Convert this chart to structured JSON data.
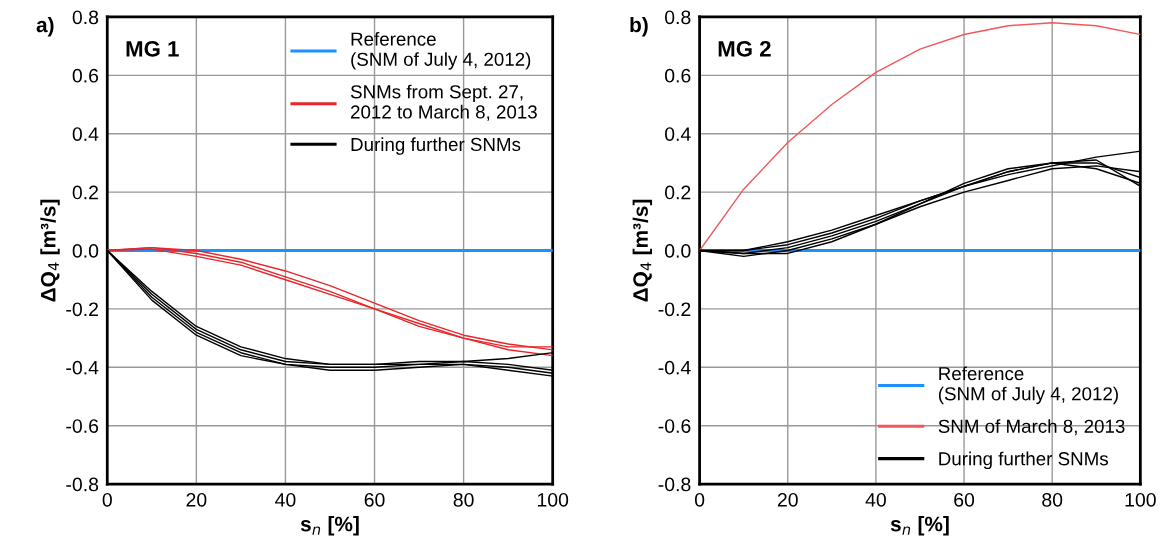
{
  "chart_data": [
    {
      "type": "line",
      "title": "a)",
      "annotations": [
        "MG 1"
      ],
      "xlabel": "s$_{n}$ [%]",
      "ylabel": "ΔQ$_{4}$ [m³/s]",
      "x": [
        0,
        10,
        20,
        30,
        40,
        50,
        60,
        70,
        80,
        90,
        100
      ],
      "xlim": [
        0,
        100
      ],
      "xticks": [
        0,
        20,
        40,
        60,
        80,
        100
      ],
      "ylim": [
        -0.8,
        0.8
      ],
      "yticks": [
        {
          "value": -0.8,
          "label": "-0.8"
        },
        {
          "value": -0.6,
          "label": "-0.6"
        },
        {
          "value": -0.4,
          "label": "-0.4"
        },
        {
          "value": -0.2,
          "label": "-0.2"
        },
        {
          "value": 0,
          "label": "0.0"
        },
        {
          "value": 0.2,
          "label": "0.2"
        },
        {
          "value": 0.4,
          "label": "0.4"
        },
        {
          "value": 0.6,
          "label": "0.6"
        },
        {
          "value": 0.8,
          "label": "0.8"
        }
      ],
      "grid": true,
      "legend": "top right",
      "series": [
        {
          "name": "Reference\n(SNM of July 4, 2012)",
          "color": "#1e90ff",
          "values": [
            0,
            0,
            0,
            0,
            0,
            0,
            0,
            0,
            0,
            0,
            0
          ]
        },
        {
          "name": "SNMs from Sept. 27,\n2012 to March 8, 2013",
          "color": "#e8262a",
          "values": [
            0,
            0.01,
            0,
            -0.03,
            -0.07,
            -0.12,
            -0.18,
            -0.24,
            -0.29,
            -0.32,
            -0.34
          ]
        },
        {
          "color": "#e8262a",
          "values": [
            0,
            0.01,
            -0.01,
            -0.04,
            -0.09,
            -0.14,
            -0.2,
            -0.25,
            -0.3,
            -0.33,
            -0.33
          ]
        },
        {
          "color": "#e8262a",
          "values": [
            0,
            0.005,
            -0.02,
            -0.05,
            -0.1,
            -0.15,
            -0.2,
            -0.26,
            -0.3,
            -0.34,
            -0.36
          ]
        },
        {
          "name": "During further SNMs",
          "color": "#000000",
          "values": [
            0,
            -0.15,
            -0.27,
            -0.34,
            -0.38,
            -0.39,
            -0.39,
            -0.39,
            -0.38,
            -0.39,
            -0.41
          ]
        },
        {
          "color": "#000000",
          "values": [
            0,
            -0.16,
            -0.28,
            -0.35,
            -0.39,
            -0.4,
            -0.4,
            -0.39,
            -0.39,
            -0.4,
            -0.42
          ]
        },
        {
          "color": "#000000",
          "values": [
            0,
            -0.14,
            -0.26,
            -0.33,
            -0.37,
            -0.39,
            -0.39,
            -0.38,
            -0.38,
            -0.37,
            -0.35
          ]
        },
        {
          "color": "#000000",
          "values": [
            0,
            -0.17,
            -0.29,
            -0.36,
            -0.39,
            -0.41,
            -0.41,
            -0.4,
            -0.39,
            -0.41,
            -0.43
          ]
        }
      ]
    },
    {
      "type": "line",
      "title": "b)",
      "annotations": [
        "MG 2"
      ],
      "xlabel": "s$_{n}$ [%]",
      "ylabel": "ΔQ$_{4}$ [m³/s]",
      "x": [
        0,
        10,
        20,
        30,
        40,
        50,
        60,
        70,
        80,
        90,
        100
      ],
      "xlim": [
        0,
        100
      ],
      "xticks": [
        0,
        20,
        40,
        60,
        80,
        100
      ],
      "ylim": [
        -0.8,
        0.8
      ],
      "yticks": [
        {
          "value": -0.8,
          "label": "-0.8"
        },
        {
          "value": -0.6,
          "label": "-0.6"
        },
        {
          "value": -0.4,
          "label": "-0.4"
        },
        {
          "value": -0.2,
          "label": "-0.2"
        },
        {
          "value": 0,
          "label": "0.0"
        },
        {
          "value": 0.2,
          "label": "0.2"
        },
        {
          "value": 0.4,
          "label": "0.4"
        },
        {
          "value": 0.6,
          "label": "0.6"
        },
        {
          "value": 0.8,
          "label": "0.8"
        }
      ],
      "grid": true,
      "legend": "bottom right",
      "series": [
        {
          "name": "Reference\n(SNM of July 4, 2012)",
          "color": "#1e90ff",
          "values": [
            0,
            0,
            0,
            0,
            0,
            0,
            0,
            0,
            0,
            0,
            0
          ]
        },
        {
          "name": "SNM of March 8, 2013",
          "color": "#f0585a",
          "values": [
            0,
            0.21,
            0.37,
            0.5,
            0.61,
            0.69,
            0.74,
            0.77,
            0.78,
            0.77,
            0.74
          ]
        },
        {
          "name": "During further SNMs",
          "color": "#000000",
          "values": [
            0,
            -0.01,
            -0.01,
            0.03,
            0.09,
            0.16,
            0.22,
            0.27,
            0.3,
            0.3,
            0.25
          ]
        },
        {
          "color": "#000000",
          "values": [
            0,
            -0.01,
            0.01,
            0.05,
            0.1,
            0.16,
            0.23,
            0.28,
            0.3,
            0.31,
            0.22
          ]
        },
        {
          "color": "#000000",
          "values": [
            0,
            0,
            0.02,
            0.06,
            0.11,
            0.17,
            0.22,
            0.26,
            0.29,
            0.32,
            0.34
          ]
        },
        {
          "color": "#000000",
          "values": [
            0,
            -0.02,
            0,
            0.04,
            0.09,
            0.15,
            0.2,
            0.24,
            0.28,
            0.29,
            0.27
          ]
        },
        {
          "color": "#000000",
          "values": [
            0,
            0,
            0.03,
            0.07,
            0.12,
            0.17,
            0.22,
            0.27,
            0.3,
            0.28,
            0.23
          ]
        }
      ]
    }
  ]
}
